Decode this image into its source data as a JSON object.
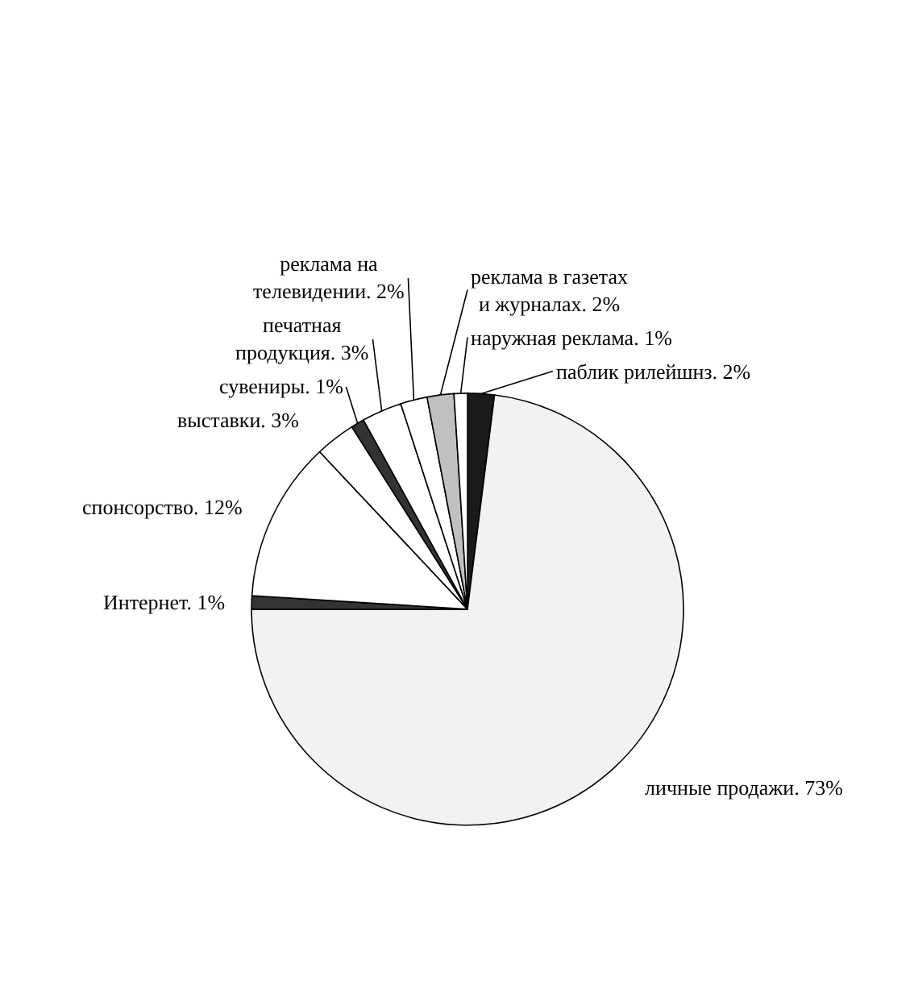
{
  "chart_data": {
    "type": "pie",
    "categories": [
      "паблик рилейшнз.",
      "личные продажи.",
      "Интернет.",
      "спонсорство.",
      "выставки.",
      "сувениры.",
      "печатная продукция.",
      "реклама на телевидении.",
      "реклама в газетах и журналах.",
      "наружная реклама."
    ],
    "values": [
      2,
      73,
      1,
      12,
      3,
      1,
      3,
      2,
      2,
      1
    ],
    "colors": [
      "#1a1a1a",
      "#f2f2f2",
      "#333333",
      "#ffffff",
      "#ffffff",
      "#333333",
      "#ffffff",
      "#ffffff",
      "#c0c0c0",
      "#ffffff"
    ],
    "value_labels": [
      "2%",
      "73%",
      "1%",
      "12%",
      "3%",
      "1%",
      "3%",
      "2%",
      "2%",
      "1%"
    ],
    "legend": false
  }
}
